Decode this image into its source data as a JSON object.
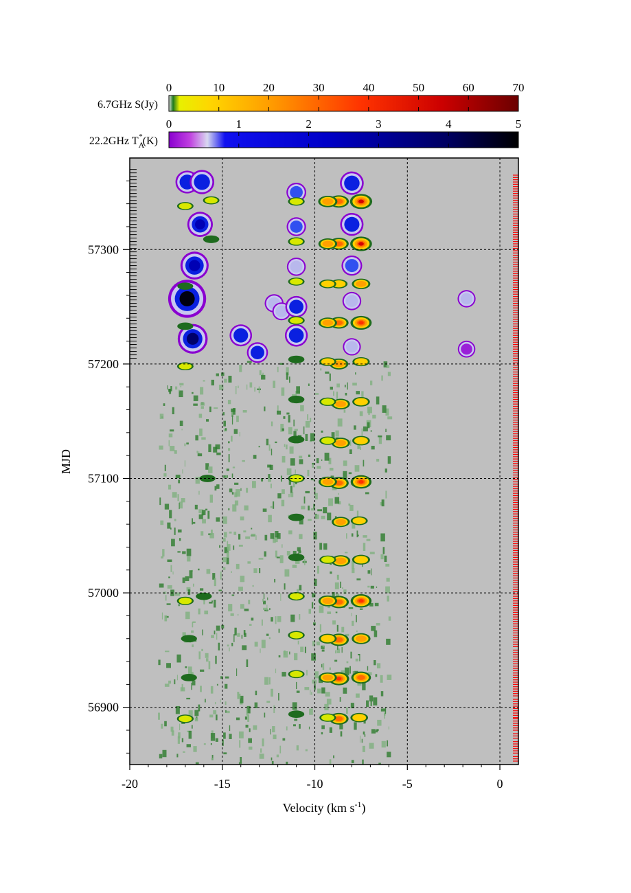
{
  "chart_data": {
    "type": "heatmap",
    "x_axis": {
      "label_main": "Velocity (km s",
      "label_sup": "-1",
      "label_close": ")",
      "range": [
        -20,
        1
      ],
      "ticks": [
        -20,
        -15,
        -10,
        -5,
        0
      ],
      "tick_labels": [
        "-20",
        "-15",
        "-10",
        "-5",
        "0"
      ]
    },
    "y_axis": {
      "label": "MJD",
      "range": [
        56850,
        57380
      ],
      "ticks": [
        56900,
        57000,
        57100,
        57200,
        57300
      ],
      "tick_labels": [
        "56900",
        "57000",
        "57100",
        "57200",
        "57300"
      ]
    },
    "grid": true,
    "colorbars": [
      {
        "label_main": "6.7GHz S(Jy)",
        "range": [
          0,
          70
        ],
        "ticks": [
          0,
          10,
          20,
          30,
          40,
          50,
          60,
          70
        ],
        "tick_labels": [
          "0",
          "10",
          "20",
          "30",
          "40",
          "50",
          "60",
          "70"
        ],
        "colors": [
          "#e6e6e6",
          "#1e7a1e",
          "#e8f000",
          "#ffd500",
          "#ff9900",
          "#ff3300",
          "#cc0000",
          "#6b0000"
        ]
      },
      {
        "label_main": "22.2GHz T",
        "label_sub": "A",
        "label_sup": "*",
        "label_close": "(K)",
        "range": [
          0,
          5
        ],
        "ticks": [
          0,
          1,
          2,
          3,
          4,
          5
        ],
        "tick_labels": [
          "0",
          "1",
          "2",
          "3",
          "4",
          "5"
        ],
        "colors": [
          "#8a00d0",
          "#c040e0",
          "#d8d8f0",
          "#1010f0",
          "#0000c8",
          "#000060",
          "#000000"
        ]
      }
    ],
    "background_color": "#bfbfbf",
    "series": [
      {
        "name": "6.7GHz",
        "observation_epochs_mjd": [
          56855,
          56862,
          56868,
          56875,
          56882,
          56888,
          56893,
          56899,
          56905,
          56912,
          56918,
          56924,
          56930,
          56936,
          56942,
          56948,
          56955,
          56961,
          56967,
          56973,
          56979,
          56985,
          56991,
          56997,
          57003,
          57009,
          57015,
          57021,
          57027,
          57033,
          57039,
          57045,
          57051,
          57057,
          57063,
          57069,
          57075,
          57081,
          57087,
          57093,
          57099,
          57105,
          57111,
          57117,
          57123,
          57129,
          57135,
          57141,
          57147,
          57153,
          57159,
          57165,
          57171,
          57177,
          57183,
          57189,
          57195,
          57201,
          57207,
          57213,
          57219,
          57225,
          57231,
          57237,
          57243,
          57249,
          57255,
          57261,
          57267,
          57273,
          57279,
          57285,
          57291,
          57297,
          57303,
          57309,
          57315,
          57321,
          57327,
          57333,
          57339,
          57345,
          57351,
          57357,
          57363
        ],
        "features": [
          {
            "v": -7.5,
            "mjd": 57342,
            "s": 45
          },
          {
            "v": -8.7,
            "mjd": 57342,
            "s": 30
          },
          {
            "v": -9.3,
            "mjd": 57342,
            "s": 25
          },
          {
            "v": -7.5,
            "mjd": 57305,
            "s": 42
          },
          {
            "v": -8.7,
            "mjd": 57305,
            "s": 28
          },
          {
            "v": -9.3,
            "mjd": 57305,
            "s": 22
          },
          {
            "v": -7.5,
            "mjd": 57270,
            "s": 20
          },
          {
            "v": -8.7,
            "mjd": 57270,
            "s": 12
          },
          {
            "v": -9.3,
            "mjd": 57270,
            "s": 10
          },
          {
            "v": -7.5,
            "mjd": 57236,
            "s": 38
          },
          {
            "v": -8.7,
            "mjd": 57236,
            "s": 26
          },
          {
            "v": -9.3,
            "mjd": 57236,
            "s": 20
          },
          {
            "v": -7.5,
            "mjd": 57202,
            "s": 12
          },
          {
            "v": -8.7,
            "mjd": 57200,
            "s": 22
          },
          {
            "v": -9.3,
            "mjd": 57202,
            "s": 10
          },
          {
            "v": -7.5,
            "mjd": 57167,
            "s": 14
          },
          {
            "v": -8.6,
            "mjd": 57165,
            "s": 20
          },
          {
            "v": -9.3,
            "mjd": 57167,
            "s": 8
          },
          {
            "v": -7.5,
            "mjd": 57133,
            "s": 14
          },
          {
            "v": -8.6,
            "mjd": 57131,
            "s": 20
          },
          {
            "v": -9.3,
            "mjd": 57133,
            "s": 8
          },
          {
            "v": -7.5,
            "mjd": 57097,
            "s": 36
          },
          {
            "v": -8.7,
            "mjd": 57096,
            "s": 28
          },
          {
            "v": -9.3,
            "mjd": 57097,
            "s": 20
          },
          {
            "v": -7.6,
            "mjd": 57063,
            "s": 10
          },
          {
            "v": -8.6,
            "mjd": 57062,
            "s": 18
          },
          {
            "v": -7.5,
            "mjd": 57029,
            "s": 16
          },
          {
            "v": -8.6,
            "mjd": 57028,
            "s": 24
          },
          {
            "v": -9.3,
            "mjd": 57029,
            "s": 8
          },
          {
            "v": -7.5,
            "mjd": 56993,
            "s": 36
          },
          {
            "v": -8.7,
            "mjd": 56992,
            "s": 30
          },
          {
            "v": -9.3,
            "mjd": 56993,
            "s": 22
          },
          {
            "v": -7.5,
            "mjd": 56960,
            "s": 22
          },
          {
            "v": -8.7,
            "mjd": 56959,
            "s": 30
          },
          {
            "v": -9.3,
            "mjd": 56960,
            "s": 16
          },
          {
            "v": -7.5,
            "mjd": 56926,
            "s": 28
          },
          {
            "v": -8.7,
            "mjd": 56925,
            "s": 34
          },
          {
            "v": -9.3,
            "mjd": 56926,
            "s": 18
          },
          {
            "v": -7.6,
            "mjd": 56891,
            "s": 14
          },
          {
            "v": -8.7,
            "mjd": 56890,
            "s": 26
          },
          {
            "v": -9.3,
            "mjd": 56891,
            "s": 8
          },
          {
            "v": -11.0,
            "mjd": 57342,
            "s": 8
          },
          {
            "v": -11.0,
            "mjd": 57307,
            "s": 8
          },
          {
            "v": -11.0,
            "mjd": 57272,
            "s": 6
          },
          {
            "v": -11.0,
            "mjd": 57238,
            "s": 8
          },
          {
            "v": -11.0,
            "mjd": 57204,
            "s": 4
          },
          {
            "v": -11.0,
            "mjd": 57169,
            "s": 4
          },
          {
            "v": -11.0,
            "mjd": 57134,
            "s": 4
          },
          {
            "v": -11.0,
            "mjd": 57100,
            "s": 8
          },
          {
            "v": -11.0,
            "mjd": 57066,
            "s": 3
          },
          {
            "v": -11.0,
            "mjd": 57031,
            "s": 4
          },
          {
            "v": -11.0,
            "mjd": 56997,
            "s": 8
          },
          {
            "v": -11.0,
            "mjd": 56963,
            "s": 8
          },
          {
            "v": -11.0,
            "mjd": 56929,
            "s": 6
          },
          {
            "v": -11.0,
            "mjd": 56894,
            "s": 3
          },
          {
            "v": -17.0,
            "mjd": 57198,
            "s": 6
          },
          {
            "v": -17.0,
            "mjd": 57233,
            "s": 3
          },
          {
            "v": -17.0,
            "mjd": 57268,
            "s": 2
          },
          {
            "v": -17.0,
            "mjd": 57338,
            "s": 6
          },
          {
            "v": -15.6,
            "mjd": 57343,
            "s": 6
          },
          {
            "v": -15.6,
            "mjd": 57309,
            "s": 4
          },
          {
            "v": -17.0,
            "mjd": 56993,
            "s": 8
          },
          {
            "v": -16.0,
            "mjd": 56997,
            "s": 3
          },
          {
            "v": -17.0,
            "mjd": 56890,
            "s": 8
          },
          {
            "v": -16.8,
            "mjd": 56960,
            "s": 3
          },
          {
            "v": -16.8,
            "mjd": 56926,
            "s": 3
          },
          {
            "v": -15.8,
            "mjd": 57100,
            "s": 3
          }
        ]
      },
      {
        "name": "22.2GHz",
        "observation_epochs_mjd": [
          57205,
          57208,
          57211,
          57214,
          57217,
          57220,
          57223,
          57226,
          57229,
          57232,
          57235,
          57238,
          57241,
          57244,
          57247,
          57250,
          57253,
          57256,
          57259,
          57262,
          57265,
          57268,
          57271,
          57274,
          57277,
          57280,
          57283,
          57286,
          57289,
          57292,
          57295,
          57298,
          57301,
          57304,
          57307,
          57310,
          57313,
          57316,
          57319,
          57322,
          57325,
          57328,
          57331,
          57334,
          57337,
          57340,
          57343,
          57346,
          57349,
          57352,
          57355,
          57358,
          57361,
          57364,
          57367,
          57370
        ],
        "features": [
          {
            "v": -16.9,
            "mjd": 57359,
            "t": 1.5
          },
          {
            "v": -16.1,
            "mjd": 57359,
            "t": 1.8
          },
          {
            "v": -16.2,
            "mjd": 57322,
            "t": 2.0
          },
          {
            "v": -16.5,
            "mjd": 57286,
            "t": 2.6
          },
          {
            "v": -16.9,
            "mjd": 57257,
            "t": 4.8
          },
          {
            "v": -16.6,
            "mjd": 57222,
            "t": 3.0
          },
          {
            "v": -14.0,
            "mjd": 57225,
            "t": 1.3
          },
          {
            "v": -13.1,
            "mjd": 57210,
            "t": 1.0
          },
          {
            "v": -12.2,
            "mjd": 57253,
            "t": 0.5
          },
          {
            "v": -11.8,
            "mjd": 57246,
            "t": 0.4
          },
          {
            "v": -11.0,
            "mjd": 57350,
            "t": 0.7
          },
          {
            "v": -11.0,
            "mjd": 57320,
            "t": 0.6
          },
          {
            "v": -11.0,
            "mjd": 57285,
            "t": 0.5
          },
          {
            "v": -11.0,
            "mjd": 57250,
            "t": 1.2
          },
          {
            "v": -11.0,
            "mjd": 57225,
            "t": 1.4
          },
          {
            "v": -8.0,
            "mjd": 57358,
            "t": 1.6
          },
          {
            "v": -8.0,
            "mjd": 57322,
            "t": 1.5
          },
          {
            "v": -8.0,
            "mjd": 57286,
            "t": 0.9
          },
          {
            "v": -8.0,
            "mjd": 57255,
            "t": 0.5
          },
          {
            "v": -8.0,
            "mjd": 57215,
            "t": 0.3
          },
          {
            "v": -1.8,
            "mjd": 57257,
            "t": 0.3
          },
          {
            "v": -1.8,
            "mjd": 57213,
            "t": 0.2
          }
        ]
      }
    ]
  }
}
